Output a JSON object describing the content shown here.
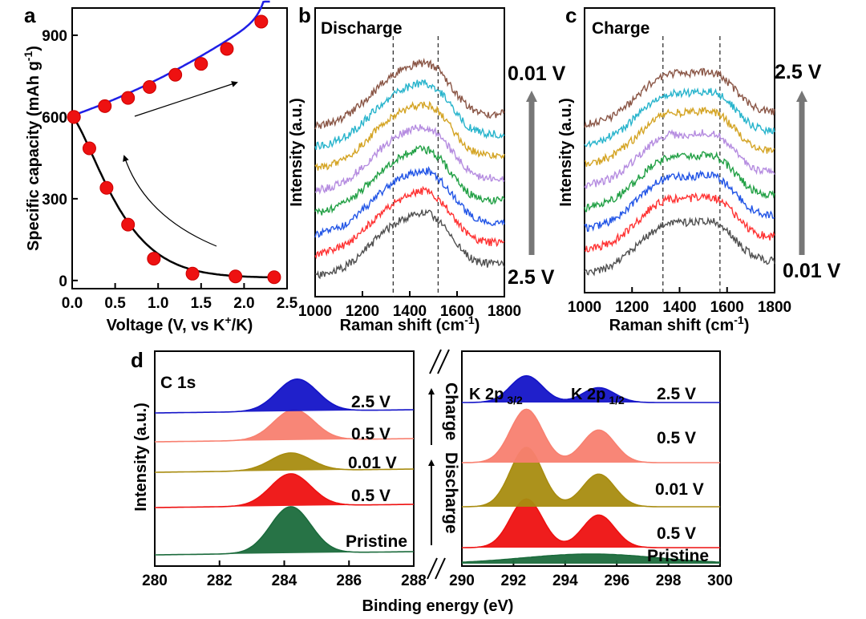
{
  "chart_data": [
    {
      "panel": "a",
      "type": "line",
      "xlabel_main": "Voltage (V, vs K",
      "xlabel_sup": "+",
      "xlabel_end": "/K)",
      "ylabel_main": "Specific capacity (mAh g",
      "ylabel_sup": "-1",
      "ylabel_end": ")",
      "xlim": [
        0,
        2.5
      ],
      "ylim": [
        -30,
        1000
      ],
      "x_ticks": [
        "0.0",
        "0.5",
        "1.0",
        "1.5",
        "2.0",
        "2.5"
      ],
      "y_ticks": [
        "0",
        "300",
        "600",
        "900"
      ],
      "series": [
        {
          "x": [
            0.02,
            0.2,
            0.4,
            0.65,
            0.95,
            1.4,
            1.9,
            2.35
          ],
          "y": [
            600,
            485,
            340,
            205,
            80,
            25,
            15,
            12
          ]
        },
        {
          "x": [
            0.02,
            0.38,
            0.65,
            0.9,
            1.2,
            1.5,
            1.8,
            2.2
          ],
          "y": [
            600,
            640,
            670,
            710,
            755,
            795,
            850,
            950
          ]
        }
      ]
    },
    {
      "panel": "b",
      "type": "line",
      "title": "Discharge",
      "xlabel_main": "Raman shift (cm",
      "xlabel_sup": "-1",
      "xlabel_end": ")",
      "ylabel": "Intensity (a.u.)",
      "x_ticks": [
        "1000",
        "1200",
        "1400",
        "1600",
        "1800"
      ],
      "xlim": [
        1000,
        1800
      ],
      "peak_lines": [
        1330,
        1520
      ],
      "arrow_bottom": "2.5 V",
      "arrow_top": "0.01 V",
      "series": [
        {
          "color": "#505050"
        },
        {
          "color": "#ff3333"
        },
        {
          "color": "#2255e6"
        },
        {
          "color": "#22a045"
        },
        {
          "color": "#b58ce0"
        },
        {
          "color": "#d4a424"
        },
        {
          "color": "#28b4cc"
        },
        {
          "color": "#8a5646"
        }
      ]
    },
    {
      "panel": "c",
      "type": "line",
      "title": "Charge",
      "xlabel_main": "Raman shift (cm",
      "xlabel_sup": "-1",
      "xlabel_end": ")",
      "ylabel": "Intensity (a.u.)",
      "x_ticks": [
        "1000",
        "1200",
        "1400",
        "1600",
        "1800"
      ],
      "xlim": [
        1000,
        1800
      ],
      "peak_lines": [
        1330,
        1570
      ],
      "arrow_bottom": "0.01 V",
      "arrow_top": "2.5 V",
      "series": [
        {
          "color": "#505050"
        },
        {
          "color": "#ff3333"
        },
        {
          "color": "#2255e6"
        },
        {
          "color": "#22a045"
        },
        {
          "color": "#b58ce0"
        },
        {
          "color": "#d4a424"
        },
        {
          "color": "#28b4cc"
        },
        {
          "color": "#8a5646"
        }
      ]
    },
    {
      "panel": "d",
      "type": "area",
      "xlabel": "Binding energy (eV)",
      "ylabel": "Intensity (a.u.)",
      "x_ticks_left": [
        "280",
        "282",
        "284",
        "286",
        "288"
      ],
      "x_ticks_right": [
        "290",
        "292",
        "294",
        "296",
        "298",
        "300"
      ],
      "xlim_left": [
        280,
        288
      ],
      "xlim_right": [
        290,
        300
      ],
      "c1s_title": "C 1s",
      "k2p_label": "K 2p",
      "k2p_sub1": "3/2",
      "k2p_sub2": "1/2",
      "charge_label": "Charge",
      "discharge_label": "Discharge",
      "series": [
        {
          "name": "Pristine",
          "color": "#1b6b3c",
          "c1s_peak": 284.2,
          "k_amp32": 0.0,
          "k_amp12": 0.0
        },
        {
          "name": "0.5 V",
          "color": "#ee1111",
          "c1s_peak": 284.2,
          "k_amp32": 0.82,
          "k_amp12": 0.55
        },
        {
          "name": "0.01 V",
          "color": "#a88c10",
          "c1s_peak": 284.2,
          "k_amp32": 1.0,
          "k_amp12": 0.55
        },
        {
          "name": "0.5 V",
          "color": "#f88070",
          "c1s_peak": 284.3,
          "k_amp32": 0.9,
          "k_amp12": 0.55
        },
        {
          "name": "2.5 V",
          "color": "#1414c8",
          "c1s_peak": 284.4,
          "k_amp32": 0.45,
          "k_amp12": 0.25
        }
      ]
    }
  ]
}
